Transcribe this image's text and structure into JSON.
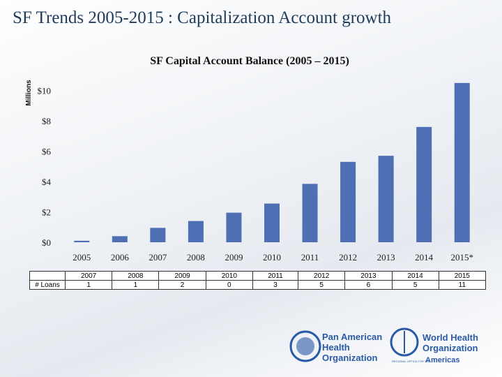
{
  "slide_title": "SF Trends 2005-2015 : Capitalization Account growth",
  "chart_data": {
    "type": "bar",
    "title": "SF Capital Account Balance (2005 – 2015)",
    "y_label": "Millions",
    "categories": [
      "2005",
      "2006",
      "2007",
      "2008",
      "2009",
      "2010",
      "2011",
      "2012",
      "2013",
      "2014",
      "2015*"
    ],
    "values": [
      0.1,
      0.4,
      0.95,
      1.4,
      1.95,
      2.55,
      3.85,
      5.3,
      5.7,
      7.6,
      10.5
    ],
    "color": "#4f6fb5",
    "ylim": [
      0,
      11
    ],
    "yticks": [
      {
        "value": 0,
        "label": "$0"
      },
      {
        "value": 2,
        "label": "$2"
      },
      {
        "value": 4,
        "label": "$4"
      },
      {
        "value": 6,
        "label": "$6"
      },
      {
        "value": 8,
        "label": "$8"
      },
      {
        "value": 10,
        "label": "$10"
      }
    ],
    "grid": false
  },
  "table": {
    "columns": [
      "2007",
      "2008",
      "2009",
      "2010",
      "2011",
      "2012",
      "2013",
      "2014",
      "2015"
    ],
    "rows": [
      {
        "label": "# Loans",
        "values": [
          "1",
          "1",
          "2",
          "0",
          "3",
          "5",
          "6",
          "5",
          "11"
        ]
      }
    ]
  },
  "logos": {
    "paho": [
      "Pan American",
      "Health",
      "Organization"
    ],
    "who": [
      "World Health",
      "Organization",
      "REGIONAL OFFICE FOR THE",
      "Americas"
    ]
  }
}
